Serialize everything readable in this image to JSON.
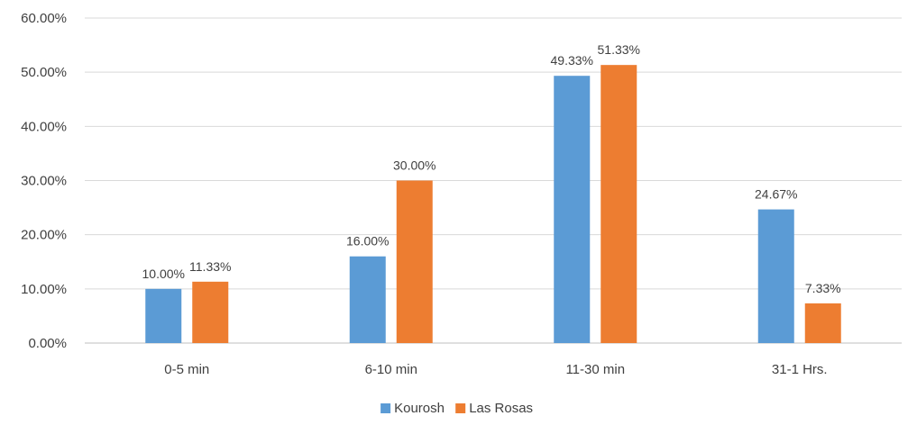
{
  "chart_data": {
    "type": "bar",
    "title": "",
    "xlabel": "",
    "ylabel": "",
    "categories": [
      "0-5 min",
      "6-10 min",
      "11-30 min",
      "31-1 Hrs."
    ],
    "series": [
      {
        "name": "Kourosh",
        "color": "#5b9bd5",
        "values": [
          10.0,
          16.0,
          49.33,
          24.67
        ],
        "labels": [
          "10.00%",
          "16.00%",
          "49.33%",
          "24.67%"
        ]
      },
      {
        "name": "Las Rosas",
        "color": "#ed7d31",
        "values": [
          11.33,
          30.0,
          51.33,
          7.33
        ],
        "labels": [
          "11.33%",
          "30.00%",
          "51.33%",
          "7.33%"
        ]
      }
    ],
    "ylim": [
      0,
      60
    ],
    "yticks": [
      0,
      10,
      20,
      30,
      40,
      50,
      60
    ],
    "ytick_labels": [
      "0.00%",
      "10.00%",
      "20.00%",
      "30.00%",
      "40.00%",
      "50.00%",
      "60.00%"
    ],
    "grid": true,
    "legend_position": "bottom"
  }
}
